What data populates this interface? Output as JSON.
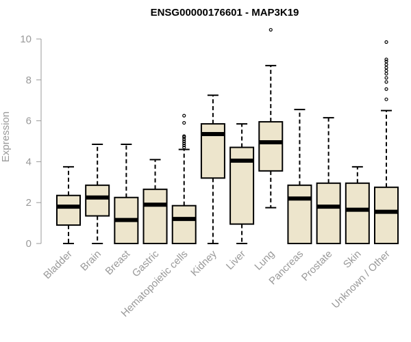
{
  "chart_data": {
    "type": "boxplot",
    "title": "ENSG00000176601 - MAP3K19",
    "xlabel": "",
    "ylabel": "Expression",
    "ylim": [
      0,
      10.5
    ],
    "yticks": [
      "0",
      "2",
      "4",
      "6",
      "8",
      "10"
    ],
    "grid": false,
    "legend": "none",
    "box_fill": "#ede5cc",
    "box_stroke": "#000000",
    "label_color": "#999999",
    "categories": [
      "Bladder",
      "Brain",
      "Breast",
      "Gastric",
      "Hematopoietic cells",
      "Kidney",
      "Liver",
      "Lung",
      "Pancreas",
      "Prostate",
      "Skin",
      "Unknown / Other"
    ],
    "boxes": [
      {
        "name": "Bladder",
        "whisker_low": 0,
        "q1": 0.9,
        "median": 1.8,
        "q3": 2.35,
        "whisker_high": 3.75,
        "outliers": []
      },
      {
        "name": "Brain",
        "whisker_low": 0,
        "q1": 1.35,
        "median": 2.25,
        "q3": 2.85,
        "whisker_high": 4.85,
        "outliers": []
      },
      {
        "name": "Breast",
        "whisker_low": 0,
        "q1": 0,
        "median": 1.15,
        "q3": 2.25,
        "whisker_high": 4.85,
        "outliers": []
      },
      {
        "name": "Gastric",
        "whisker_low": 0,
        "q1": 0,
        "median": 1.9,
        "q3": 2.65,
        "whisker_high": 4.1,
        "outliers": []
      },
      {
        "name": "Hematopoietic cells",
        "whisker_low": 0,
        "q1": 0,
        "median": 1.2,
        "q3": 1.85,
        "whisker_high": 4.6,
        "outliers": [
          4.7,
          4.8,
          4.9,
          5.0,
          5.1,
          5.2,
          5.25,
          5.9,
          6.25
        ]
      },
      {
        "name": "Kidney",
        "whisker_low": 0,
        "q1": 3.2,
        "median": 5.35,
        "q3": 5.85,
        "whisker_high": 7.25,
        "outliers": []
      },
      {
        "name": "Liver",
        "whisker_low": 0,
        "q1": 0.95,
        "median": 4.05,
        "q3": 4.7,
        "whisker_high": 5.85,
        "outliers": []
      },
      {
        "name": "Lung",
        "whisker_low": 1.75,
        "q1": 3.55,
        "median": 4.95,
        "q3": 5.95,
        "whisker_high": 8.7,
        "outliers": [
          10.45
        ]
      },
      {
        "name": "Pancreas",
        "whisker_low": 0,
        "q1": 0,
        "median": 2.2,
        "q3": 2.85,
        "whisker_high": 6.55,
        "outliers": []
      },
      {
        "name": "Prostate",
        "whisker_low": 0,
        "q1": 0,
        "median": 1.8,
        "q3": 2.95,
        "whisker_high": 6.15,
        "outliers": []
      },
      {
        "name": "Skin",
        "whisker_low": 0,
        "q1": 0,
        "median": 1.65,
        "q3": 2.95,
        "whisker_high": 3.75,
        "outliers": []
      },
      {
        "name": "Unknown / Other",
        "whisker_low": 0,
        "q1": 0,
        "median": 1.55,
        "q3": 2.75,
        "whisker_high": 6.5,
        "outliers": [
          7.05,
          7.55,
          7.9,
          8.1,
          8.3,
          8.45,
          8.6,
          8.75,
          8.9,
          9.0,
          9.85
        ]
      }
    ]
  }
}
